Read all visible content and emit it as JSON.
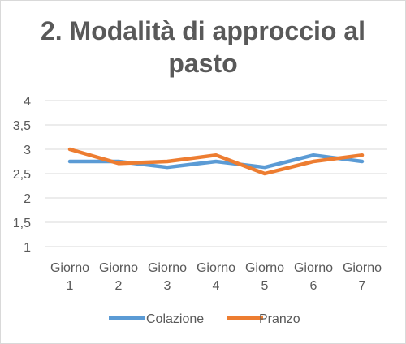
{
  "chart_data": {
    "type": "line",
    "title": "2. Modalità di approccio al pasto",
    "xlabel": "",
    "ylabel": "",
    "categories": [
      [
        "Giorno",
        "1"
      ],
      [
        "Giorno",
        "2"
      ],
      [
        "Giorno",
        "3"
      ],
      [
        "Giorno",
        "4"
      ],
      [
        "Giorno",
        "5"
      ],
      [
        "Giorno",
        "6"
      ],
      [
        "Giorno",
        "7"
      ]
    ],
    "ylim": [
      1,
      4
    ],
    "yticks": [
      "1",
      "1,5",
      "2",
      "2,5",
      "3",
      "3,5",
      "4"
    ],
    "yticks_values": [
      1,
      1.5,
      2,
      2.5,
      3,
      3.5,
      4
    ],
    "grid": true,
    "legend_position": "bottom",
    "series": [
      {
        "name": "Colazione",
        "color": "#5B9BD5",
        "values": [
          2.75,
          2.75,
          2.63,
          2.75,
          2.63,
          2.88,
          2.75
        ]
      },
      {
        "name": "Pranzo",
        "color": "#ED7D31",
        "values": [
          3.0,
          2.71,
          2.75,
          2.88,
          2.5,
          2.75,
          2.88
        ]
      }
    ]
  }
}
